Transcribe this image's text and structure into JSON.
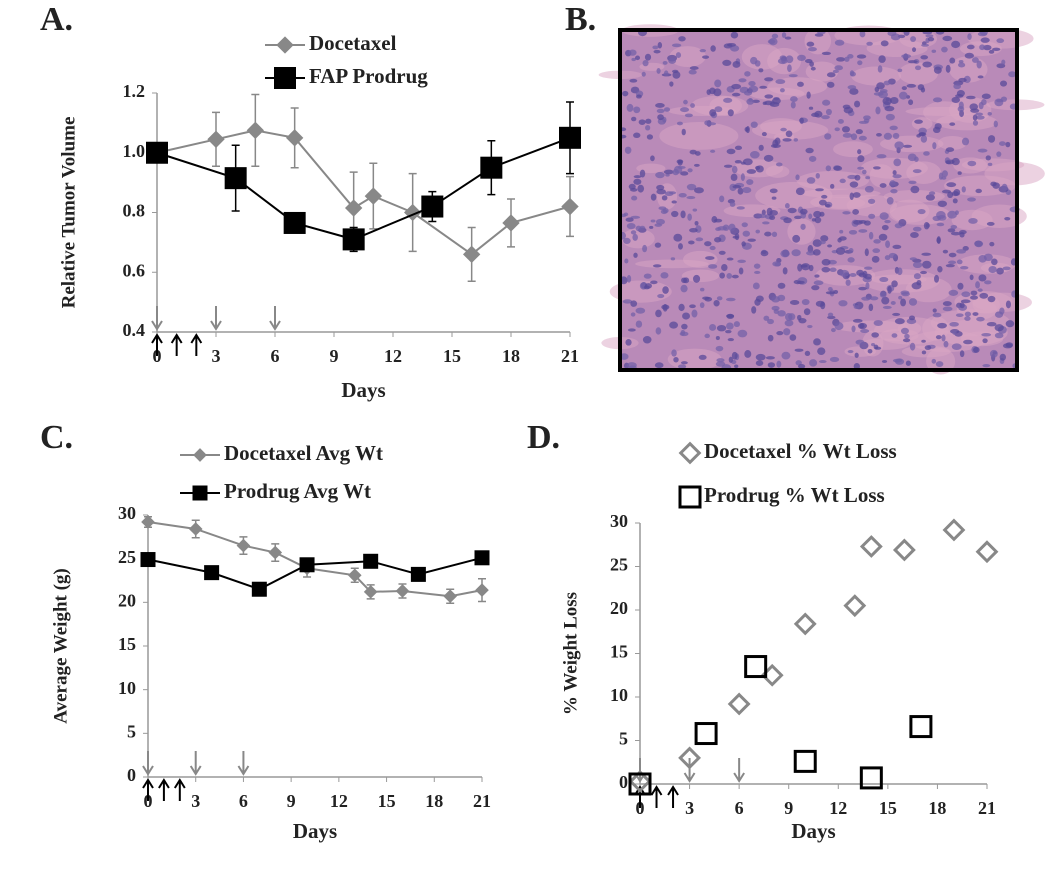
{
  "image_panel": {
    "label": "B."
  },
  "chart_data": [
    {
      "type": "line",
      "panel_label": "A.",
      "x_label": "Days",
      "y_label": "Relative Tumor Volume",
      "xlim": [
        0,
        21
      ],
      "xticks": [
        0,
        3,
        6,
        9,
        12,
        15,
        18,
        21
      ],
      "ylim": [
        0.4,
        1.2
      ],
      "yticks": [
        0.4,
        0.6,
        0.8,
        {
          "value": 1,
          "label": "1.0"
        },
        1.2
      ],
      "series": [
        {
          "name": "Docetaxel",
          "color": "#888888",
          "marker": "diamond",
          "x": [
            0,
            3,
            5,
            7,
            10,
            11,
            13,
            16,
            18,
            21
          ],
          "values": [
            1.0,
            1.045,
            1.075,
            1.05,
            0.815,
            0.855,
            0.8,
            0.66,
            0.765,
            0.82
          ],
          "errors": [
            0,
            0.09,
            0.12,
            0.1,
            0.12,
            0.11,
            0.13,
            0.09,
            0.08,
            0.1
          ]
        },
        {
          "name": "FAP Prodrug",
          "color": "#000000",
          "marker": "square",
          "x": [
            0,
            4,
            7,
            10,
            14,
            17,
            21
          ],
          "values": [
            1.0,
            0.915,
            0.765,
            0.71,
            0.82,
            0.95,
            1.05
          ],
          "errors": [
            0,
            0.11,
            0.03,
            0.04,
            0.05,
            0.09,
            0.12
          ]
        }
      ],
      "dose_arrows": [
        {
          "color": "#888888",
          "direction": "down",
          "x": [
            0,
            3,
            6
          ]
        },
        {
          "color": "#000000",
          "direction": "up",
          "x": [
            0,
            1,
            2
          ]
        }
      ]
    },
    {
      "type": "line",
      "panel_label": "C.",
      "x_label": "Days",
      "y_label": "Average Weight (g)",
      "xlim": [
        0,
        21
      ],
      "xticks": [
        0,
        3,
        6,
        9,
        12,
        15,
        18,
        21
      ],
      "ylim": [
        0,
        30
      ],
      "yticks": [
        0,
        5,
        10,
        15,
        20,
        25,
        30
      ],
      "series": [
        {
          "name": "Docetaxel Avg Wt",
          "color": "#888888",
          "marker": "diamond",
          "x": [
            0,
            3,
            6,
            8,
            10,
            13,
            14,
            16,
            19,
            21
          ],
          "values": [
            29.2,
            28.4,
            26.5,
            25.7,
            23.9,
            23.1,
            21.2,
            21.3,
            20.7,
            21.4
          ],
          "errors": [
            0.6,
            1,
            1,
            1,
            1,
            0.8,
            0.8,
            0.8,
            0.8,
            1.3
          ]
        },
        {
          "name": "Prodrug Avg Wt",
          "color": "#000000",
          "marker": "square",
          "x": [
            0,
            4,
            7,
            10,
            14,
            17,
            21
          ],
          "values": [
            24.9,
            23.4,
            21.5,
            24.3,
            24.7,
            23.2,
            25.1
          ]
        }
      ],
      "dose_arrows": [
        {
          "color": "#888888",
          "direction": "down",
          "x": [
            0,
            3,
            6
          ]
        },
        {
          "color": "#000000",
          "direction": "up",
          "x": [
            0,
            1,
            2
          ]
        }
      ]
    },
    {
      "type": "scatter",
      "panel_label": "D.",
      "x_label": "Days",
      "y_label": "% Weight Loss",
      "xlim": [
        0,
        21
      ],
      "xticks": [
        0,
        3,
        6,
        9,
        12,
        15,
        18,
        21
      ],
      "ylim": [
        0,
        30
      ],
      "yticks": [
        0,
        5,
        10,
        15,
        20,
        25,
        30
      ],
      "series": [
        {
          "name": "Docetaxel % Wt Loss",
          "color": "#888888",
          "marker": "diamond",
          "x": [
            0,
            3,
            6,
            8,
            10,
            13,
            14,
            16,
            19,
            21
          ],
          "values": [
            0.3,
            3,
            9.2,
            12.5,
            18.4,
            20.5,
            27.3,
            26.9,
            29.2,
            26.7
          ]
        },
        {
          "name": "Prodrug % Wt Loss",
          "color": "#000000",
          "marker": "square",
          "x": [
            0,
            4,
            7,
            10,
            14,
            17
          ],
          "values": [
            0,
            5.8,
            13.5,
            2.6,
            0.7,
            6.6
          ]
        }
      ],
      "dose_arrows": [
        {
          "color": "#888888",
          "direction": "down",
          "x": [
            0,
            3,
            6
          ]
        },
        {
          "color": "#000000",
          "direction": "up",
          "x": [
            0,
            1,
            2
          ]
        }
      ]
    }
  ]
}
